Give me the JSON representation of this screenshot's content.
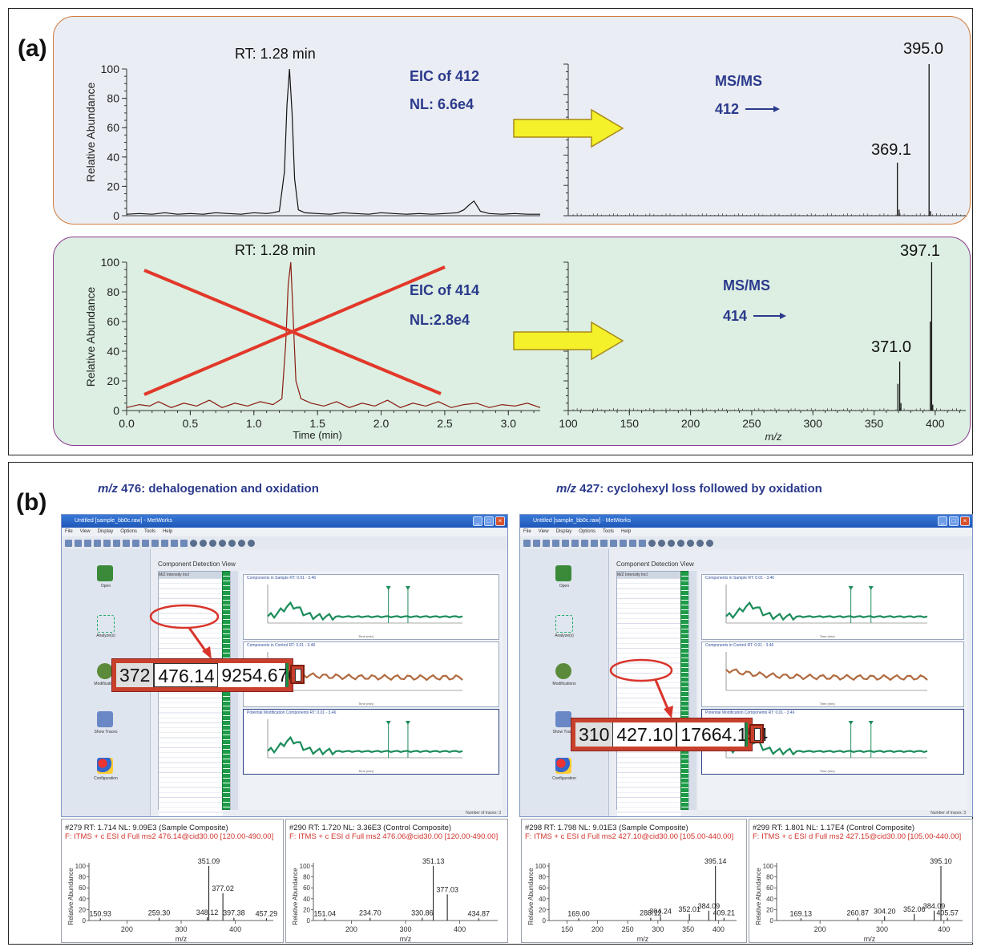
{
  "panel_a": {
    "label": "(a)",
    "top": {
      "rt_label": "RT: 1.28 min",
      "eic_line1": "EIC of 412",
      "eic_line2": "NL: 6.6e4",
      "msms_line1": "MS/MS",
      "msms_line2": "412",
      "ylabel": "Relative Abundance",
      "peak_main": "395.0",
      "peak_minor": "369.1"
    },
    "bottom": {
      "rt_label": "RT: 1.28 min",
      "eic_line1": "EIC of 414",
      "eic_line2": "NL:2.8e4",
      "msms_line1": "MS/MS",
      "msms_line2": "414",
      "ylabel": "Relative Abundance",
      "xlabel_left": "Time (min)",
      "xlabel_right": "m/z",
      "peak_main": "397.1",
      "peak_minor": "371.0"
    },
    "colors": {
      "top_bg": "#eaedf3",
      "top_border": "#d27a3a",
      "bottom_bg": "#dcefe2",
      "bottom_border": "#8a3a8f",
      "arrow": "#f4f02a",
      "caption": "#2b3a8c",
      "cross": "#e2382a",
      "trace_top": "#111111",
      "trace_bottom": "#8a1a10"
    }
  },
  "panel_b": {
    "label": "(b)",
    "caption_left_mz": "m/z",
    "caption_left_rest": " 476: dehalogenation and oxidation",
    "caption_right_mz": "m/z",
    "caption_right_rest": " 427: cyclohexyl loss followed by oxidation",
    "screens": [
      {
        "title": "Untitled [sample_bb0c.raw] - MetWorks",
        "menu": [
          "File",
          "View",
          "Display",
          "Options",
          "Tools",
          "Help"
        ],
        "view_title": "Component Detection View",
        "left_tools": [
          "Open",
          "Analyze(s)",
          "Modifications",
          "Show Traces",
          "Configuration"
        ],
        "table_header": [
          "M/Z",
          "Intensity",
          "Incl"
        ],
        "sub_titles": [
          "Components in Sample RT: 0.01 - 3.46",
          "Components in Control RT: 0.01 - 3.46",
          "Potential Modification Components RT: 0.01 - 3.46"
        ],
        "time_label": "Time (min)",
        "traces_label": "Number of traces: 3",
        "zoom": [
          "372",
          "476.14",
          "9254.670"
        ]
      },
      {
        "title": "Untitled [sample_bb0c.raw] - MetWorks",
        "menu": [
          "File",
          "View",
          "Display",
          "Options",
          "Tools",
          "Help"
        ],
        "view_title": "Component Detection View",
        "left_tools": [
          "Open",
          "Analyze(s)",
          "Modifications",
          "Show Traces",
          "Configuration"
        ],
        "table_header": [
          "M/Z",
          "Intensity",
          "Incl"
        ],
        "sub_titles": [
          "Components in Sample RT: 0.01 - 3.46",
          "Components in Control RT: 0.01 - 3.46",
          "Potential Modification Components RT: 0.01 - 3.46"
        ],
        "time_label": "Time (min)",
        "traces_label": "Number of traces: 3",
        "zoom": [
          "310",
          "427.10",
          "17664.154"
        ]
      }
    ],
    "spectra": [
      {
        "line1": "#279  RT: 1.714  NL: 9.09E3  (Sample Composite)",
        "line2": "F: ITMS + c ESI d Full ms2 476.14@cid30.00 [120.00-490.00]"
      },
      {
        "line1": "#290  RT: 1.720  NL: 3.36E3  (Control Composite)",
        "line2": "F: ITMS + c ESI d Full ms2 476.06@cid30.00 [120.00-490.00]"
      },
      {
        "line1": "#298  RT: 1.798  NL: 9.01E3  (Sample Composite)",
        "line2": "F: ITMS + c ESI d Full ms2 427.10@cid30.00 [105.00-440.00]"
      },
      {
        "line1": "#299  RT: 1.801  NL: 1.17E4  (Control Composite)",
        "line2": "F: ITMS + c ESI d Full ms2 427.15@cid30.00 [105.00-440.00]"
      }
    ],
    "spectrum_ylabel": "Relative Abundance",
    "spectrum_xlabel": "m/z"
  },
  "chart_data": [
    {
      "type": "line",
      "id": "top-eic",
      "ylabel": "Relative Abundance",
      "xlim": [
        0,
        3.25
      ],
      "ylim": [
        0,
        100
      ],
      "yticks": [
        0,
        20,
        40,
        60,
        80,
        100
      ],
      "x": [
        0.0,
        0.1,
        0.2,
        0.3,
        0.4,
        0.5,
        0.6,
        0.7,
        0.8,
        0.9,
        1.0,
        1.1,
        1.15,
        1.2,
        1.24,
        1.26,
        1.28,
        1.3,
        1.32,
        1.35,
        1.4,
        1.5,
        1.6,
        1.7,
        1.8,
        1.9,
        2.0,
        2.1,
        2.2,
        2.3,
        2.4,
        2.5,
        2.6,
        2.65,
        2.7,
        2.73,
        2.78,
        2.85,
        2.95,
        3.05,
        3.15,
        3.25
      ],
      "y": [
        1,
        1.5,
        1,
        2,
        1,
        1.5,
        1,
        2,
        1.5,
        1,
        2,
        1.5,
        2,
        3,
        30,
        75,
        100,
        70,
        25,
        4,
        2,
        1.5,
        1,
        2,
        1.5,
        1,
        2,
        1.5,
        1,
        1.5,
        1,
        1.5,
        2,
        4,
        8,
        10,
        3,
        1.5,
        1,
        1.5,
        1,
        1
      ],
      "annotations": [
        "RT: 1.28 min",
        "EIC of 412",
        "NL: 6.6e4"
      ]
    },
    {
      "type": "bar",
      "id": "top-msms",
      "xlim": [
        100,
        425
      ],
      "ylim": [
        0,
        100
      ],
      "x": [
        369.1,
        370.5,
        395.0,
        396.2
      ],
      "y": [
        35,
        4,
        100,
        3
      ],
      "labels": {
        "395.0": 100,
        "369.1": 35
      },
      "annotations": [
        "MS/MS",
        "412"
      ]
    },
    {
      "type": "line",
      "id": "bottom-eic",
      "xlabel": "Time (min)",
      "ylabel": "Relative Abundance",
      "xlim": [
        0,
        3.25
      ],
      "ylim": [
        0,
        100
      ],
      "xticks": [
        0.0,
        0.5,
        1.0,
        1.5,
        2.0,
        2.5,
        3.0
      ],
      "yticks": [
        0,
        20,
        40,
        60,
        80,
        100
      ],
      "x": [
        0.0,
        0.1,
        0.18,
        0.25,
        0.35,
        0.45,
        0.55,
        0.65,
        0.75,
        0.85,
        0.95,
        1.05,
        1.15,
        1.22,
        1.25,
        1.27,
        1.29,
        1.31,
        1.33,
        1.37,
        1.45,
        1.55,
        1.65,
        1.75,
        1.85,
        1.95,
        2.05,
        2.15,
        2.25,
        2.35,
        2.45,
        2.55,
        2.65,
        2.75,
        2.85,
        2.95,
        3.05,
        3.15,
        3.25
      ],
      "y": [
        2,
        4,
        3,
        6,
        2,
        5,
        3,
        7,
        2,
        5,
        3,
        6,
        4,
        8,
        45,
        85,
        100,
        60,
        20,
        8,
        5,
        3,
        6,
        2,
        5,
        3,
        7,
        2,
        5,
        3,
        6,
        2,
        4,
        5,
        2,
        4,
        3,
        5,
        2
      ],
      "annotations": [
        "RT: 1.28 min",
        "EIC of 414",
        "NL:2.8e4"
      ]
    },
    {
      "type": "bar",
      "id": "bottom-msms",
      "xlabel": "m/z",
      "xlim": [
        100,
        425
      ],
      "ylim": [
        0,
        100
      ],
      "xticks": [
        100,
        150,
        200,
        250,
        300,
        350,
        400
      ],
      "x": [
        369.5,
        371.0,
        372.0,
        396.0,
        397.1,
        398.0
      ],
      "y": [
        18,
        33,
        5,
        60,
        100,
        4
      ],
      "labels": {
        "397.1": 100,
        "371.0": 33
      },
      "annotations": [
        "MS/MS",
        "414"
      ]
    },
    {
      "type": "bar",
      "id": "spec-476-sample",
      "ylabel": "Relative Abundance",
      "xlabel": "m/z",
      "xlim": [
        130,
        470
      ],
      "xticks": [
        200,
        300,
        400
      ],
      "yticks": [
        0,
        20,
        40,
        60,
        80,
        100
      ],
      "x": [
        150.93,
        259.3,
        348.12,
        351.09,
        377.02,
        397.38,
        457.29
      ],
      "y": [
        4,
        5,
        6,
        100,
        50,
        5,
        4
      ]
    },
    {
      "type": "bar",
      "id": "spec-476-control",
      "ylabel": "Relative Abundance",
      "xlabel": "m/z",
      "xlim": [
        130,
        470
      ],
      "xticks": [
        200,
        300,
        400
      ],
      "yticks": [
        0,
        20,
        40,
        60,
        80,
        100
      ],
      "x": [
        151.04,
        234.7,
        330.86,
        351.13,
        377.03,
        434.87
      ],
      "y": [
        4,
        5,
        5,
        100,
        48,
        4
      ]
    },
    {
      "type": "bar",
      "id": "spec-427-sample",
      "ylabel": "Relative Abundance",
      "xlabel": "m/z",
      "xlim": [
        120,
        430
      ],
      "xticks": [
        150,
        200,
        250,
        300,
        350,
        400
      ],
      "yticks": [
        0,
        20,
        40,
        60,
        80,
        100
      ],
      "x": [
        169.0,
        288.12,
        304.24,
        352.01,
        384.09,
        395.14,
        409.21
      ],
      "y": [
        4,
        5,
        8,
        12,
        18,
        100,
        5
      ]
    },
    {
      "type": "bar",
      "id": "spec-427-control",
      "ylabel": "Relative Abundance",
      "xlabel": "m/z",
      "xlim": [
        130,
        430
      ],
      "xticks": [
        200,
        300,
        400
      ],
      "yticks": [
        0,
        20,
        40,
        60,
        80,
        100
      ],
      "x": [
        169.13,
        260.87,
        304.2,
        352.06,
        384.09,
        395.1,
        405.57
      ],
      "y": [
        4,
        5,
        8,
        12,
        18,
        100,
        5
      ]
    }
  ]
}
